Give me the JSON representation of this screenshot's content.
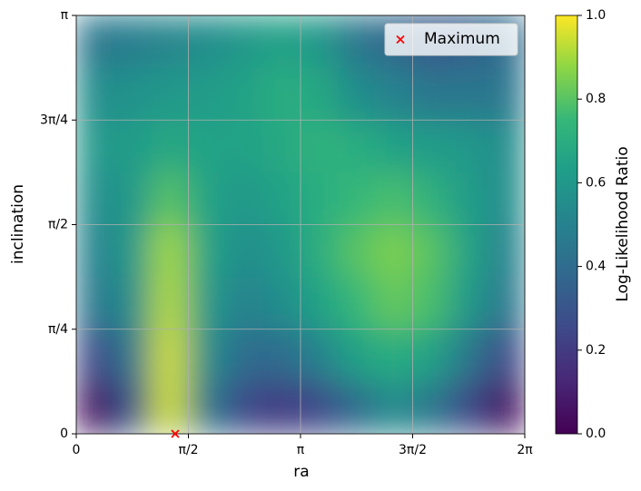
{
  "chart_data": {
    "type": "heatmap",
    "xlabel": "ra",
    "ylabel": "inclination",
    "colorbar_label": "Log-Likelihood Ratio",
    "colormap": "viridis",
    "grid": true,
    "legend_loc": "upper right",
    "xlim": [
      0,
      6.283185
    ],
    "ylim": [
      0,
      3.141593
    ],
    "zlim": [
      0,
      1
    ],
    "xticks": [
      0,
      {
        "value": 1.570796,
        "label": "π/2"
      },
      {
        "value": 3.141593,
        "label": "π"
      },
      {
        "value": 4.712389,
        "label": "3π/2"
      },
      {
        "value": 6.283185,
        "label": "2π"
      }
    ],
    "yticks": [
      0,
      {
        "value": 0.785398,
        "label": "π/4"
      },
      {
        "value": 1.570796,
        "label": "π/2"
      },
      {
        "value": 2.356194,
        "label": "3π/4"
      },
      {
        "value": 3.141593,
        "label": "π"
      }
    ],
    "zticks": [
      {
        "value": 0,
        "label": "0.0"
      },
      {
        "value": 0.2,
        "label": "0.2"
      },
      {
        "value": 0.4,
        "label": "0.4"
      },
      {
        "value": 0.6,
        "label": "0.6"
      },
      {
        "value": 0.8,
        "label": "0.8"
      },
      {
        "value": 1,
        "label": "1.0"
      }
    ],
    "x": [
      0.26,
      0.79,
      1.31,
      1.83,
      2.36,
      2.88,
      3.4,
      3.93,
      4.45,
      4.97,
      5.5,
      6.02
    ],
    "y": [
      0.2,
      0.59,
      0.98,
      1.37,
      1.77,
      2.16,
      2.55,
      2.95
    ],
    "z": [
      [
        0.05,
        0.3,
        0.95,
        0.45,
        0.25,
        0.2,
        0.25,
        0.4,
        0.55,
        0.45,
        0.25,
        0.05
      ],
      [
        0.25,
        0.45,
        0.95,
        0.55,
        0.4,
        0.4,
        0.5,
        0.65,
        0.7,
        0.65,
        0.45,
        0.25
      ],
      [
        0.45,
        0.55,
        0.92,
        0.6,
        0.5,
        0.55,
        0.65,
        0.75,
        0.82,
        0.78,
        0.6,
        0.45
      ],
      [
        0.5,
        0.6,
        0.9,
        0.65,
        0.55,
        0.6,
        0.7,
        0.8,
        0.85,
        0.8,
        0.65,
        0.5
      ],
      [
        0.55,
        0.6,
        0.8,
        0.65,
        0.6,
        0.65,
        0.7,
        0.75,
        0.78,
        0.72,
        0.62,
        0.55
      ],
      [
        0.6,
        0.62,
        0.68,
        0.65,
        0.65,
        0.68,
        0.72,
        0.7,
        0.65,
        0.62,
        0.6,
        0.55
      ],
      [
        0.55,
        0.58,
        0.6,
        0.62,
        0.65,
        0.7,
        0.68,
        0.55,
        0.5,
        0.45,
        0.45,
        0.45
      ],
      [
        0.45,
        0.48,
        0.52,
        0.55,
        0.6,
        0.65,
        0.6,
        0.45,
        0.38,
        0.32,
        0.35,
        0.4
      ]
    ],
    "maximum": {
      "name": "Maximum",
      "x": 1.386,
      "y": 0,
      "color": "#ff0000"
    }
  }
}
